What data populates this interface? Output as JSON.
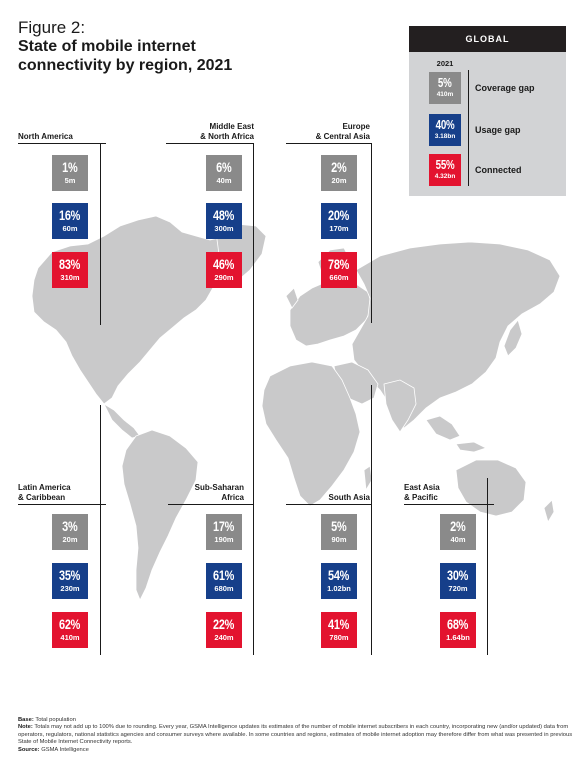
{
  "figure_label": "Figure 2:",
  "title": "State of mobile internet connectivity by region, 2021",
  "legend": {
    "header": "GLOBAL",
    "year": "2021",
    "items": [
      {
        "pct": "5%",
        "pop": "410m",
        "label": "Coverage gap",
        "color": "#8a8a8a"
      },
      {
        "pct": "40%",
        "pop": "3.18bn",
        "label": "Usage gap",
        "color": "#163f8a"
      },
      {
        "pct": "55%",
        "pop": "4.32bn",
        "label": "Connected",
        "color": "#e3132f"
      }
    ]
  },
  "regions": [
    {
      "name": "North America",
      "coverage_gap": {
        "pct": "1%",
        "pop": "5m"
      },
      "usage_gap": {
        "pct": "16%",
        "pop": "60m"
      },
      "connected": {
        "pct": "83%",
        "pop": "310m"
      }
    },
    {
      "name_line1": "Middle East",
      "name_line2": "& North Africa",
      "coverage_gap": {
        "pct": "6%",
        "pop": "40m"
      },
      "usage_gap": {
        "pct": "48%",
        "pop": "300m"
      },
      "connected": {
        "pct": "46%",
        "pop": "290m"
      }
    },
    {
      "name_line1": "Europe",
      "name_line2": "& Central Asia",
      "coverage_gap": {
        "pct": "2%",
        "pop": "20m"
      },
      "usage_gap": {
        "pct": "20%",
        "pop": "170m"
      },
      "connected": {
        "pct": "78%",
        "pop": "660m"
      }
    },
    {
      "name_line1": "Latin America",
      "name_line2": "& Caribbean",
      "coverage_gap": {
        "pct": "3%",
        "pop": "20m"
      },
      "usage_gap": {
        "pct": "35%",
        "pop": "230m"
      },
      "connected": {
        "pct": "62%",
        "pop": "410m"
      }
    },
    {
      "name_line1": "Sub-Saharan",
      "name_line2": "Africa",
      "coverage_gap": {
        "pct": "17%",
        "pop": "190m"
      },
      "usage_gap": {
        "pct": "61%",
        "pop": "680m"
      },
      "connected": {
        "pct": "22%",
        "pop": "240m"
      }
    },
    {
      "name": "South Asia",
      "coverage_gap": {
        "pct": "5%",
        "pop": "90m"
      },
      "usage_gap": {
        "pct": "54%",
        "pop": "1.02bn"
      },
      "connected": {
        "pct": "41%",
        "pop": "780m"
      }
    },
    {
      "name_line1": "East Asia",
      "name_line2": "& Pacific",
      "coverage_gap": {
        "pct": "2%",
        "pop": "40m"
      },
      "usage_gap": {
        "pct": "30%",
        "pop": "720m"
      },
      "connected": {
        "pct": "68%",
        "pop": "1.64bn"
      }
    }
  ],
  "notes": {
    "base_label": "Base:",
    "base_text": "Total population",
    "note_label": "Note:",
    "note_text": "Totals may not add up to 100% due to rounding. Every year, GSMA Intelligence updates its estimates of the number of mobile internet subscribers in each country, incorporating new (and/or updated) data from operators, regulators, national statistics agencies and consumer surveys where available. In some countries and regions, estimates of mobile internet adoption may therefore differ from what was presented in previous State of Mobile Internet Connectivity reports.",
    "source_label": "Source:",
    "source_text": "GSMA Intelligence"
  }
}
